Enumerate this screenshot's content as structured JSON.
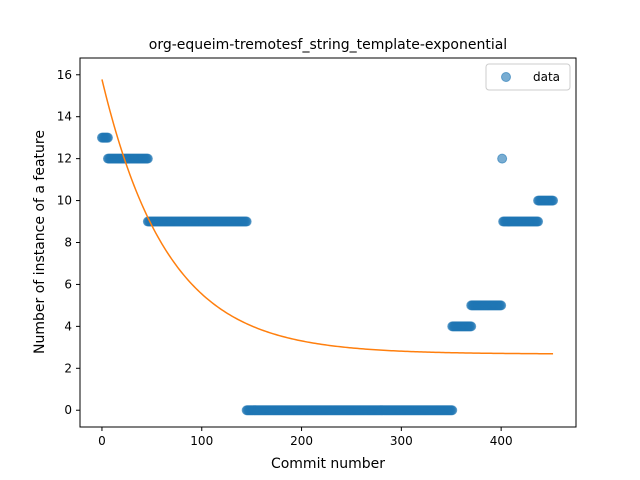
{
  "chart_data": {
    "type": "scatter",
    "title": "org-equeim-tremotesf_string_template-exponential",
    "xlabel": "Commit number",
    "ylabel": "Number of instance of a feature",
    "xlim": [
      -22,
      475
    ],
    "ylim": [
      -0.8,
      16.8
    ],
    "xticks": [
      0,
      100,
      200,
      300,
      400
    ],
    "yticks": [
      0,
      2,
      4,
      6,
      8,
      10,
      12,
      14,
      16
    ],
    "grid": false,
    "legend": {
      "placement": "top-right",
      "entries": [
        "data"
      ]
    },
    "series": [
      {
        "name": "data",
        "kind": "scatter",
        "color": "#1f77b4",
        "segments": [
          {
            "x_start": 0,
            "x_end": 6,
            "y": 13
          },
          {
            "x_start": 6,
            "x_end": 46,
            "y": 12
          },
          {
            "x_start": 46,
            "x_end": 145,
            "y": 9
          },
          {
            "x_start": 145,
            "x_end": 351,
            "y": 0
          },
          {
            "x_start": 351,
            "x_end": 370,
            "y": 4
          },
          {
            "x_start": 370,
            "x_end": 400,
            "y": 5
          },
          {
            "x_start": 401,
            "x_end": 401,
            "y": 12
          },
          {
            "x_start": 402,
            "x_end": 437,
            "y": 9
          },
          {
            "x_start": 437,
            "x_end": 452,
            "y": 10
          }
        ]
      },
      {
        "name": "",
        "kind": "line",
        "color": "#ff7f0e",
        "model": {
          "a": 13.1,
          "b": 0.0152,
          "c": 2.68
        },
        "x_range": [
          0,
          452
        ]
      }
    ]
  }
}
